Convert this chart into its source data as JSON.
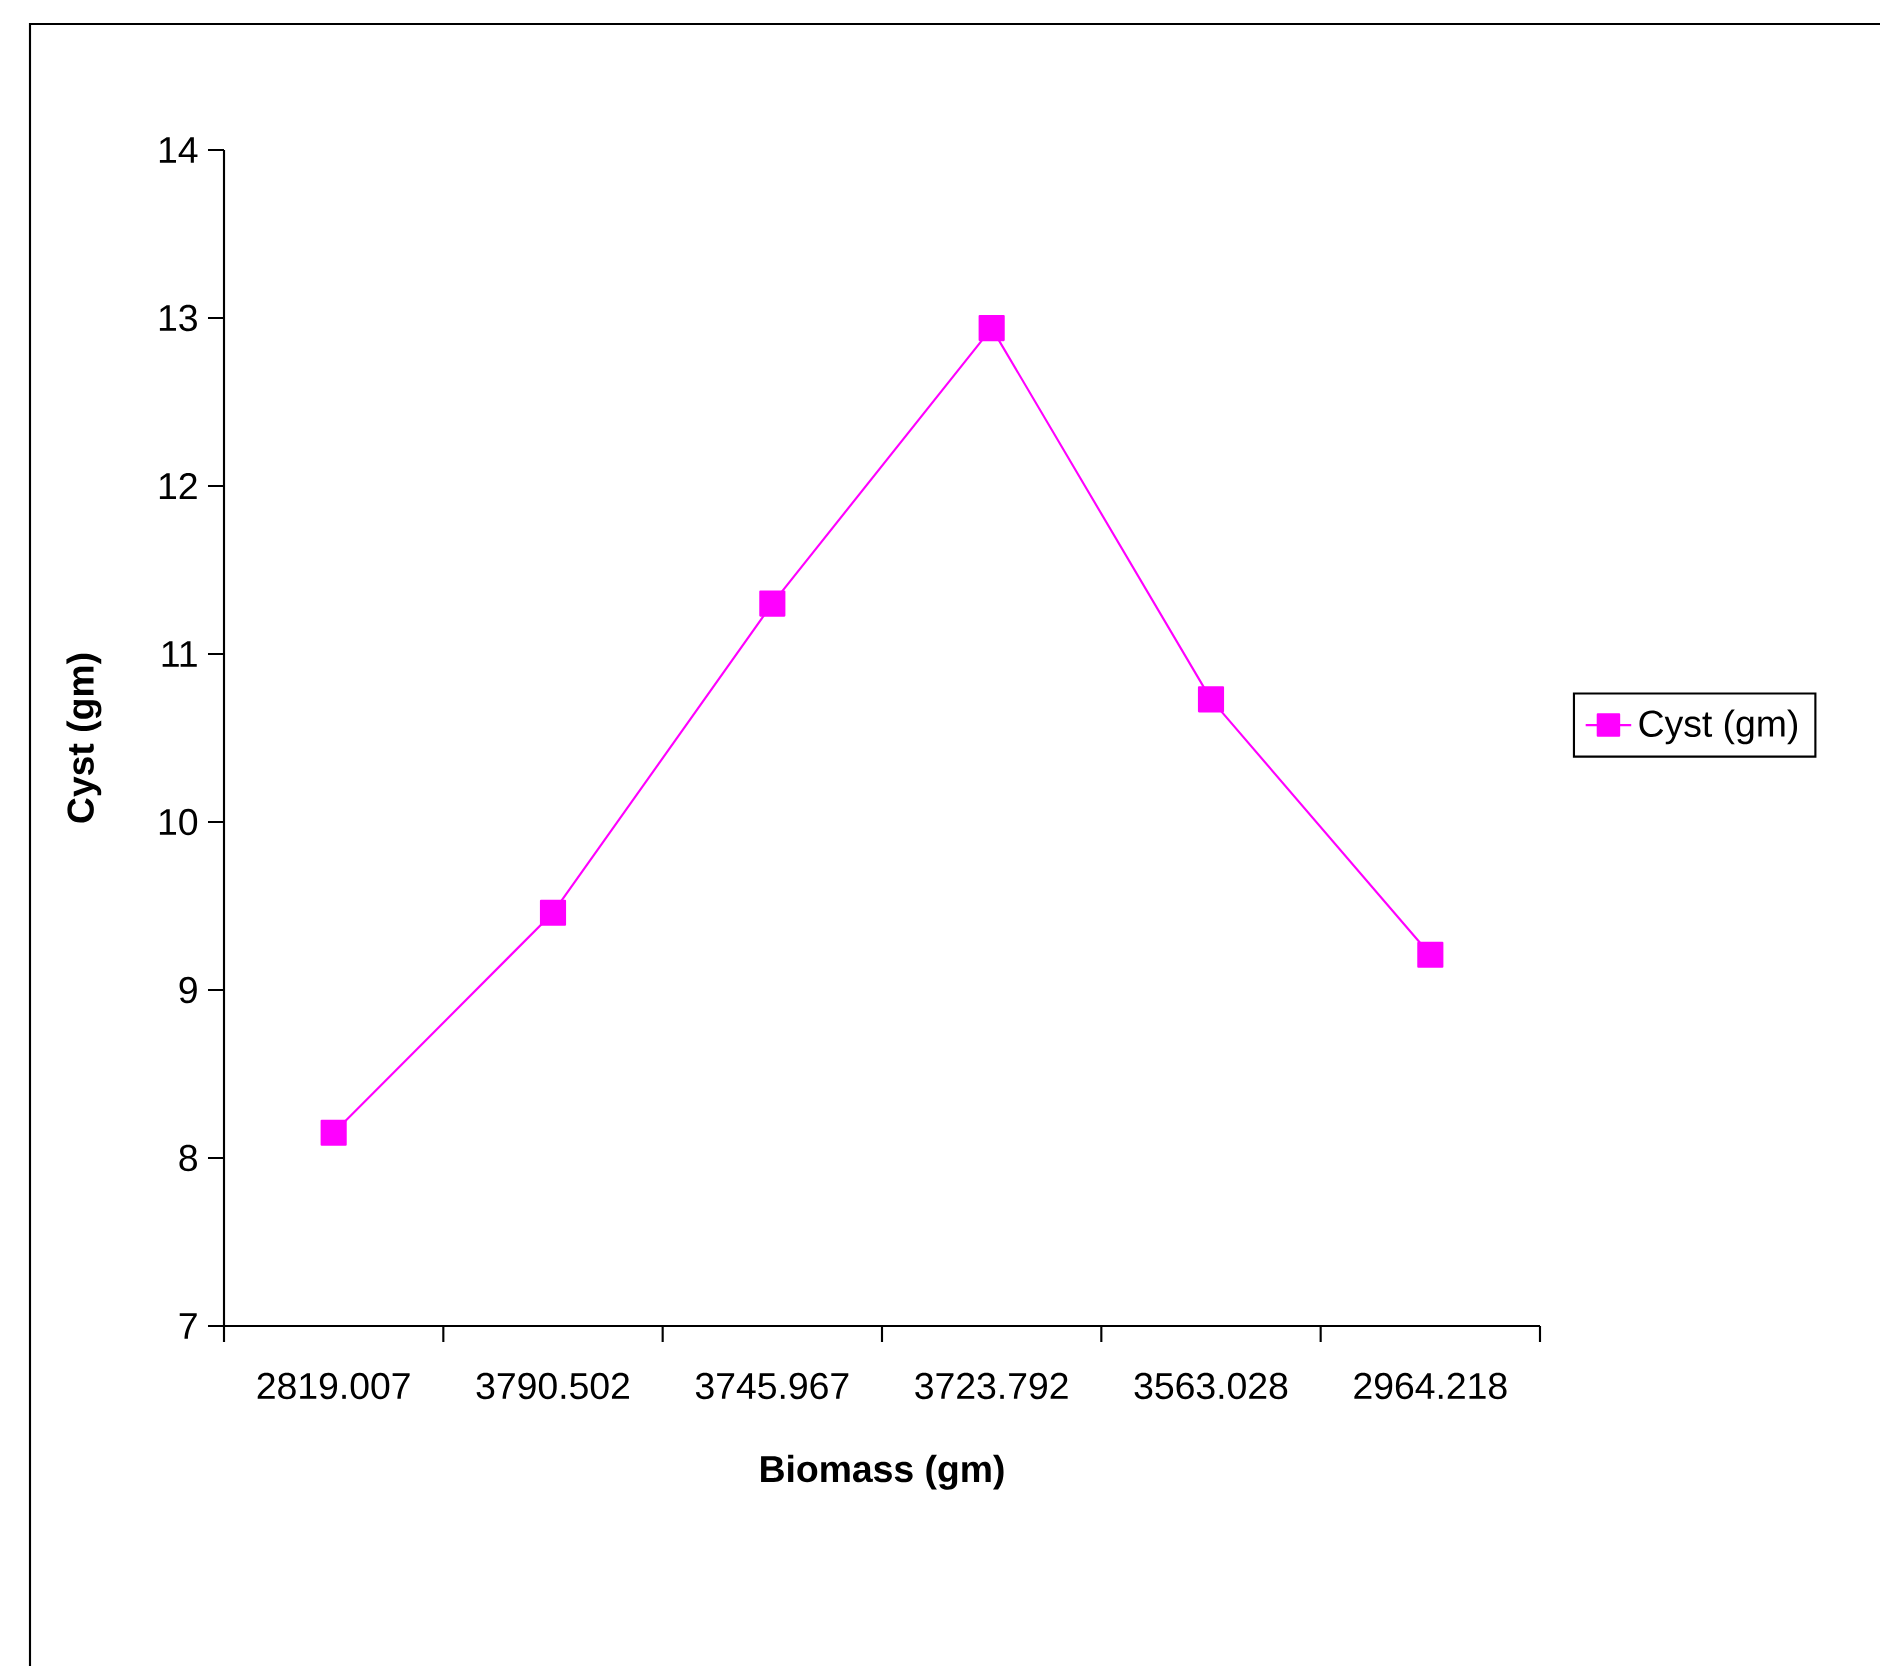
{
  "chart_data": {
    "type": "line",
    "xlabel": "Biomass (gm)",
    "ylabel": "Cyst (gm)",
    "categories": [
      "2819.007",
      "3790.502",
      "3745.967",
      "3723.792",
      "3563.028",
      "2964.218"
    ],
    "series": [
      {
        "name": "Cyst (gm)",
        "color": "#ff00ff",
        "values": [
          8.15,
          9.46,
          11.3,
          12.94,
          10.73,
          9.21
        ]
      }
    ],
    "ylim": [
      7,
      14
    ],
    "yticks": [
      7,
      8,
      9,
      10,
      11,
      12,
      13,
      14
    ],
    "legend": "right",
    "marker": "square",
    "line_style": "solid"
  }
}
